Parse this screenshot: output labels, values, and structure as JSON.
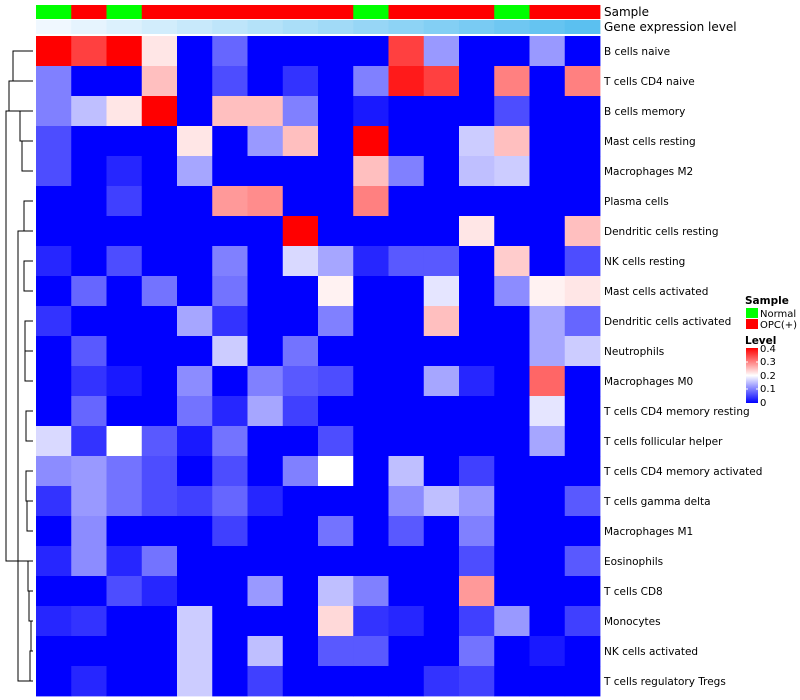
{
  "chart_data": {
    "type": "heatmap",
    "title": "",
    "samples": [
      "Normal",
      "OPC(+)",
      "Normal",
      "OPC(+)",
      "OPC(+)",
      "OPC(+)",
      "OPC(+)",
      "OPC(+)",
      "OPC(+)",
      "Normal",
      "OPC(+)",
      "OPC(+)",
      "OPC(+)",
      "Normal",
      "OPC(+)",
      "OPC(+)"
    ],
    "gene_expression_level": [
      0.0,
      0.01,
      0.02,
      0.03,
      0.04,
      0.05,
      0.06,
      0.07,
      0.08,
      0.09,
      0.1,
      0.11,
      0.12,
      0.13,
      0.14,
      0.15
    ],
    "rows": [
      "B cells naive",
      "T cells CD4 naive",
      "B cells memory",
      "Mast cells resting",
      "Macrophages M2",
      "Plasma cells",
      "Dendritic cells resting",
      "NK cells resting",
      "Mast cells activated",
      "Dendritic cells activated",
      "Neutrophils",
      "Macrophages M0",
      "T cells CD4 memory resting",
      "T cells follicular helper",
      "T cells CD4 memory activated",
      "T cells gamma delta",
      "Macrophages M1",
      "Eosinophils",
      "T cells CD8",
      "Monocytes",
      "NK cells activated",
      "T cells regulatory  Tregs"
    ],
    "values": [
      [
        0.4,
        0.35,
        0.4,
        0.22,
        0.0,
        0.08,
        0.0,
        0.0,
        0.0,
        0.0,
        0.35,
        0.12,
        0.0,
        0.0,
        0.12,
        0.0
      ],
      [
        0.1,
        0.0,
        0.0,
        0.25,
        0.0,
        0.06,
        0.0,
        0.04,
        0.0,
        0.1,
        0.38,
        0.35,
        0.0,
        0.3,
        0.0,
        0.3
      ],
      [
        0.1,
        0.15,
        0.22,
        0.4,
        0.0,
        0.25,
        0.25,
        0.1,
        0.0,
        0.02,
        0.0,
        0.0,
        0.0,
        0.06,
        0.0,
        0.0
      ],
      [
        0.06,
        0.0,
        0.0,
        0.0,
        0.22,
        0.0,
        0.12,
        0.25,
        0.0,
        0.4,
        0.0,
        0.0,
        0.16,
        0.25,
        0.0,
        0.0
      ],
      [
        0.06,
        0.0,
        0.03,
        0.0,
        0.13,
        0.0,
        0.0,
        0.0,
        0.0,
        0.25,
        0.1,
        0.0,
        0.15,
        0.16,
        0.0,
        0.0
      ],
      [
        0.0,
        0.0,
        0.05,
        0.0,
        0.0,
        0.28,
        0.29,
        0.0,
        0.0,
        0.3,
        0.0,
        0.0,
        0.0,
        0.0,
        0.0,
        0.0
      ],
      [
        0.0,
        0.0,
        0.0,
        0.0,
        0.0,
        0.0,
        0.0,
        0.4,
        0.0,
        0.0,
        0.0,
        0.0,
        0.22,
        0.0,
        0.0,
        0.25
      ],
      [
        0.03,
        0.0,
        0.06,
        0.0,
        0.0,
        0.1,
        0.0,
        0.17,
        0.13,
        0.03,
        0.07,
        0.07,
        0.0,
        0.24,
        0.0,
        0.06
      ],
      [
        0.0,
        0.08,
        0.0,
        0.09,
        0.0,
        0.09,
        0.0,
        0.0,
        0.21,
        0.0,
        0.0,
        0.18,
        0.0,
        0.11,
        0.21,
        0.22
      ],
      [
        0.04,
        0.0,
        0.0,
        0.0,
        0.13,
        0.04,
        0.0,
        0.0,
        0.1,
        0.0,
        0.0,
        0.25,
        0.0,
        0.0,
        0.13,
        0.08
      ],
      [
        0.0,
        0.07,
        0.0,
        0.0,
        0.0,
        0.16,
        0.0,
        0.09,
        0.0,
        0.0,
        0.0,
        0.0,
        0.0,
        0.0,
        0.13,
        0.16
      ],
      [
        0.0,
        0.04,
        0.02,
        0.0,
        0.11,
        0.0,
        0.1,
        0.07,
        0.06,
        0.0,
        0.0,
        0.13,
        0.03,
        0.0,
        0.32,
        0.0
      ],
      [
        0.0,
        0.08,
        0.0,
        0.0,
        0.09,
        0.03,
        0.13,
        0.05,
        0.0,
        0.0,
        0.0,
        0.0,
        0.0,
        0.0,
        0.18,
        0.0
      ],
      [
        0.17,
        0.04,
        0.2,
        0.07,
        0.02,
        0.09,
        0.0,
        0.0,
        0.06,
        0.0,
        0.0,
        0.0,
        0.0,
        0.0,
        0.13,
        0.0
      ],
      [
        0.11,
        0.12,
        0.09,
        0.06,
        0.0,
        0.06,
        0.0,
        0.1,
        0.2,
        0.0,
        0.15,
        0.0,
        0.05,
        0.0,
        0.0,
        0.0
      ],
      [
        0.04,
        0.12,
        0.09,
        0.06,
        0.05,
        0.08,
        0.03,
        0.0,
        0.0,
        0.0,
        0.11,
        0.15,
        0.12,
        0.0,
        0.0,
        0.07
      ],
      [
        0.0,
        0.11,
        0.0,
        0.0,
        0.0,
        0.05,
        0.0,
        0.0,
        0.09,
        0.0,
        0.07,
        0.0,
        0.1,
        0.0,
        0.0,
        0.0
      ],
      [
        0.03,
        0.11,
        0.03,
        0.09,
        0.0,
        0.0,
        0.0,
        0.0,
        0.0,
        0.0,
        0.0,
        0.0,
        0.06,
        0.0,
        0.0,
        0.07
      ],
      [
        0.0,
        0.0,
        0.06,
        0.03,
        0.0,
        0.0,
        0.12,
        0.0,
        0.15,
        0.1,
        0.0,
        0.0,
        0.28,
        0.0,
        0.0,
        0.0
      ],
      [
        0.03,
        0.04,
        0.0,
        0.0,
        0.16,
        0.0,
        0.0,
        0.0,
        0.23,
        0.04,
        0.03,
        0.0,
        0.05,
        0.12,
        0.0,
        0.05
      ],
      [
        0.0,
        0.0,
        0.0,
        0.0,
        0.16,
        0.0,
        0.15,
        0.0,
        0.07,
        0.07,
        0.0,
        0.0,
        0.09,
        0.0,
        0.02,
        0.0
      ],
      [
        0.0,
        0.03,
        0.0,
        0.0,
        0.16,
        0.0,
        0.05,
        0.0,
        0.0,
        0.0,
        0.0,
        0.04,
        0.05,
        0.0,
        0.0,
        0.0
      ]
    ],
    "annotation_labels": {
      "sample": "Sample",
      "level": "Gene expression level"
    },
    "colors": {
      "low": "#0000FF",
      "mid": "#FFFFFF",
      "high": "#FF0000",
      "normal": "#00FF00",
      "opc": "#FF0000",
      "level_low": "#F0F8FF",
      "level_high": "#5BC0F0"
    },
    "color_scale": {
      "min": 0,
      "mid": 0.2,
      "max": 0.4
    },
    "legends": {
      "sample": {
        "title": "Sample",
        "entries": [
          "Normal",
          "OPC(+)"
        ]
      },
      "level": {
        "title": "Level",
        "ticks": [
          "0.4",
          "0.3",
          "0.2",
          "0.1",
          "0"
        ]
      }
    },
    "grid": false,
    "legend_position": "right",
    "dendrogram": "rows"
  }
}
